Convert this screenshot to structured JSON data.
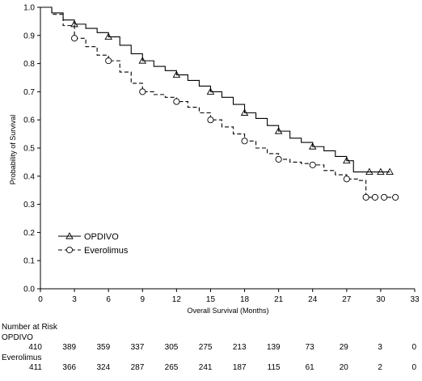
{
  "chart_data": {
    "type": "line",
    "subtype": "kaplan-meier",
    "title": "",
    "xlabel": "Overall Survival (Months)",
    "ylabel": "Probability of Survival",
    "xlim": [
      0,
      33
    ],
    "ylim": [
      0.0,
      1.0
    ],
    "x_ticks": [
      "0",
      "3",
      "6",
      "9",
      "12",
      "15",
      "18",
      "21",
      "24",
      "27",
      "30",
      "33"
    ],
    "y_ticks": [
      "0.0",
      "0.1",
      "0.2",
      "0.3",
      "0.4",
      "0.5",
      "0.6",
      "0.7",
      "0.8",
      "0.9",
      "1.0"
    ],
    "grid": false,
    "legend_position": "bottom-left",
    "series": [
      {
        "name": "OPDIVO",
        "line_style": "solid",
        "marker": "triangle",
        "color": "#000000",
        "x": [
          0,
          1,
          2,
          3,
          4,
          5,
          6,
          7,
          8,
          9,
          10,
          11,
          12,
          13,
          14,
          15,
          16,
          17,
          18,
          19,
          20,
          21,
          22,
          23,
          24,
          25,
          26,
          27,
          27.6,
          27.6,
          29,
          30,
          30.8
        ],
        "y": [
          1.0,
          0.98,
          0.955,
          0.94,
          0.925,
          0.91,
          0.895,
          0.865,
          0.835,
          0.81,
          0.79,
          0.775,
          0.76,
          0.74,
          0.72,
          0.7,
          0.68,
          0.655,
          0.625,
          0.605,
          0.58,
          0.56,
          0.535,
          0.52,
          0.505,
          0.49,
          0.47,
          0.455,
          0.45,
          0.415,
          0.415,
          0.415,
          0.415
        ]
      },
      {
        "name": "Everolimus",
        "line_style": "dashed",
        "marker": "circle",
        "color": "#000000",
        "x": [
          0,
          1,
          2,
          3,
          4,
          5,
          6,
          7,
          8,
          9,
          10,
          11,
          12,
          13,
          14,
          15,
          16,
          17,
          18,
          19,
          20,
          21,
          22,
          23,
          24,
          25,
          26,
          27,
          28,
          28.7,
          28.7,
          29.5,
          30.3,
          31.3
        ],
        "y": [
          1.0,
          0.975,
          0.935,
          0.89,
          0.86,
          0.83,
          0.81,
          0.77,
          0.73,
          0.7,
          0.69,
          0.68,
          0.665,
          0.645,
          0.625,
          0.6,
          0.575,
          0.55,
          0.525,
          0.5,
          0.48,
          0.46,
          0.45,
          0.445,
          0.44,
          0.42,
          0.405,
          0.39,
          0.385,
          0.38,
          0.325,
          0.325,
          0.325,
          0.325
        ]
      }
    ],
    "risk_table": {
      "title": "Number at Risk",
      "timepoints": [
        0,
        3,
        6,
        9,
        12,
        15,
        18,
        21,
        24,
        27,
        30,
        33
      ],
      "rows": [
        {
          "label": "OPDIVO",
          "values": [
            "410",
            "389",
            "359",
            "337",
            "305",
            "275",
            "213",
            "139",
            "73",
            "29",
            "3",
            "0"
          ]
        },
        {
          "label": "Everolimus",
          "values": [
            "411",
            "366",
            "324",
            "287",
            "265",
            "241",
            "187",
            "115",
            "61",
            "20",
            "2",
            "0"
          ]
        }
      ]
    }
  }
}
